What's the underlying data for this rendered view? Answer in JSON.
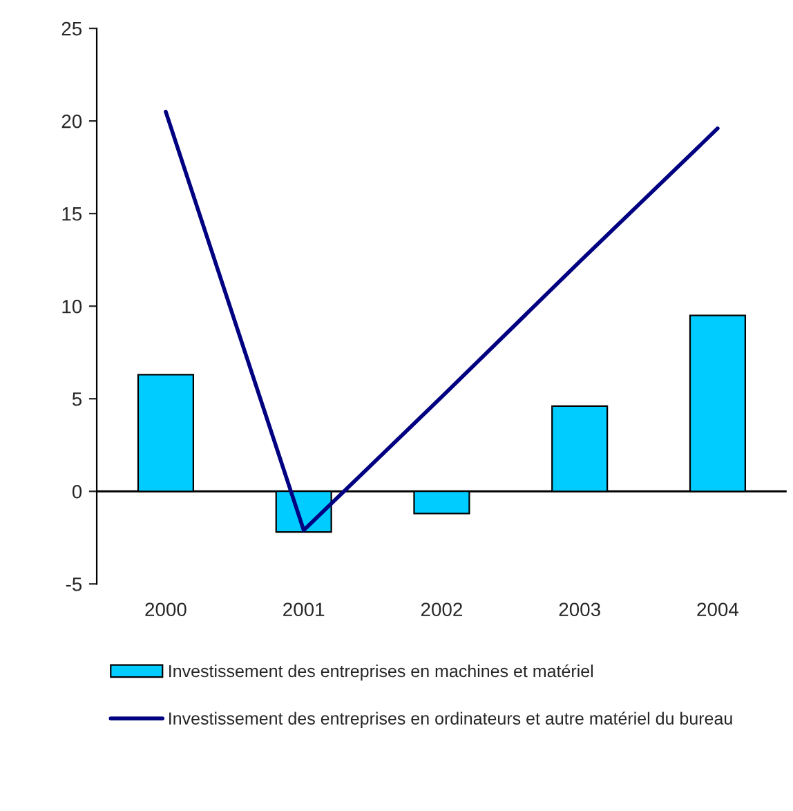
{
  "chart_data": {
    "type": "bar",
    "categories": [
      "2000",
      "2001",
      "2002",
      "2003",
      "2004"
    ],
    "series": [
      {
        "name": "Investissement des entreprises en machines et matériel",
        "color": "#00ccff",
        "values": [
          6.3,
          -2.2,
          -1.2,
          4.6,
          9.5
        ]
      },
      {
        "name": "Investissement des entreprises en ordinateurs et autre matériel du bureau",
        "type": "line",
        "color": "#000080",
        "values": [
          20.5,
          -2.1,
          5.1,
          12.4,
          19.6
        ]
      }
    ],
    "ylim": [
      -5,
      25
    ],
    "yticks": [
      -5,
      0,
      5,
      10,
      15,
      20,
      25
    ],
    "grid": false,
    "legend": "bottom",
    "ref_lines": [
      {
        "axis": "y",
        "value": 0,
        "color": "#000000"
      }
    ]
  }
}
